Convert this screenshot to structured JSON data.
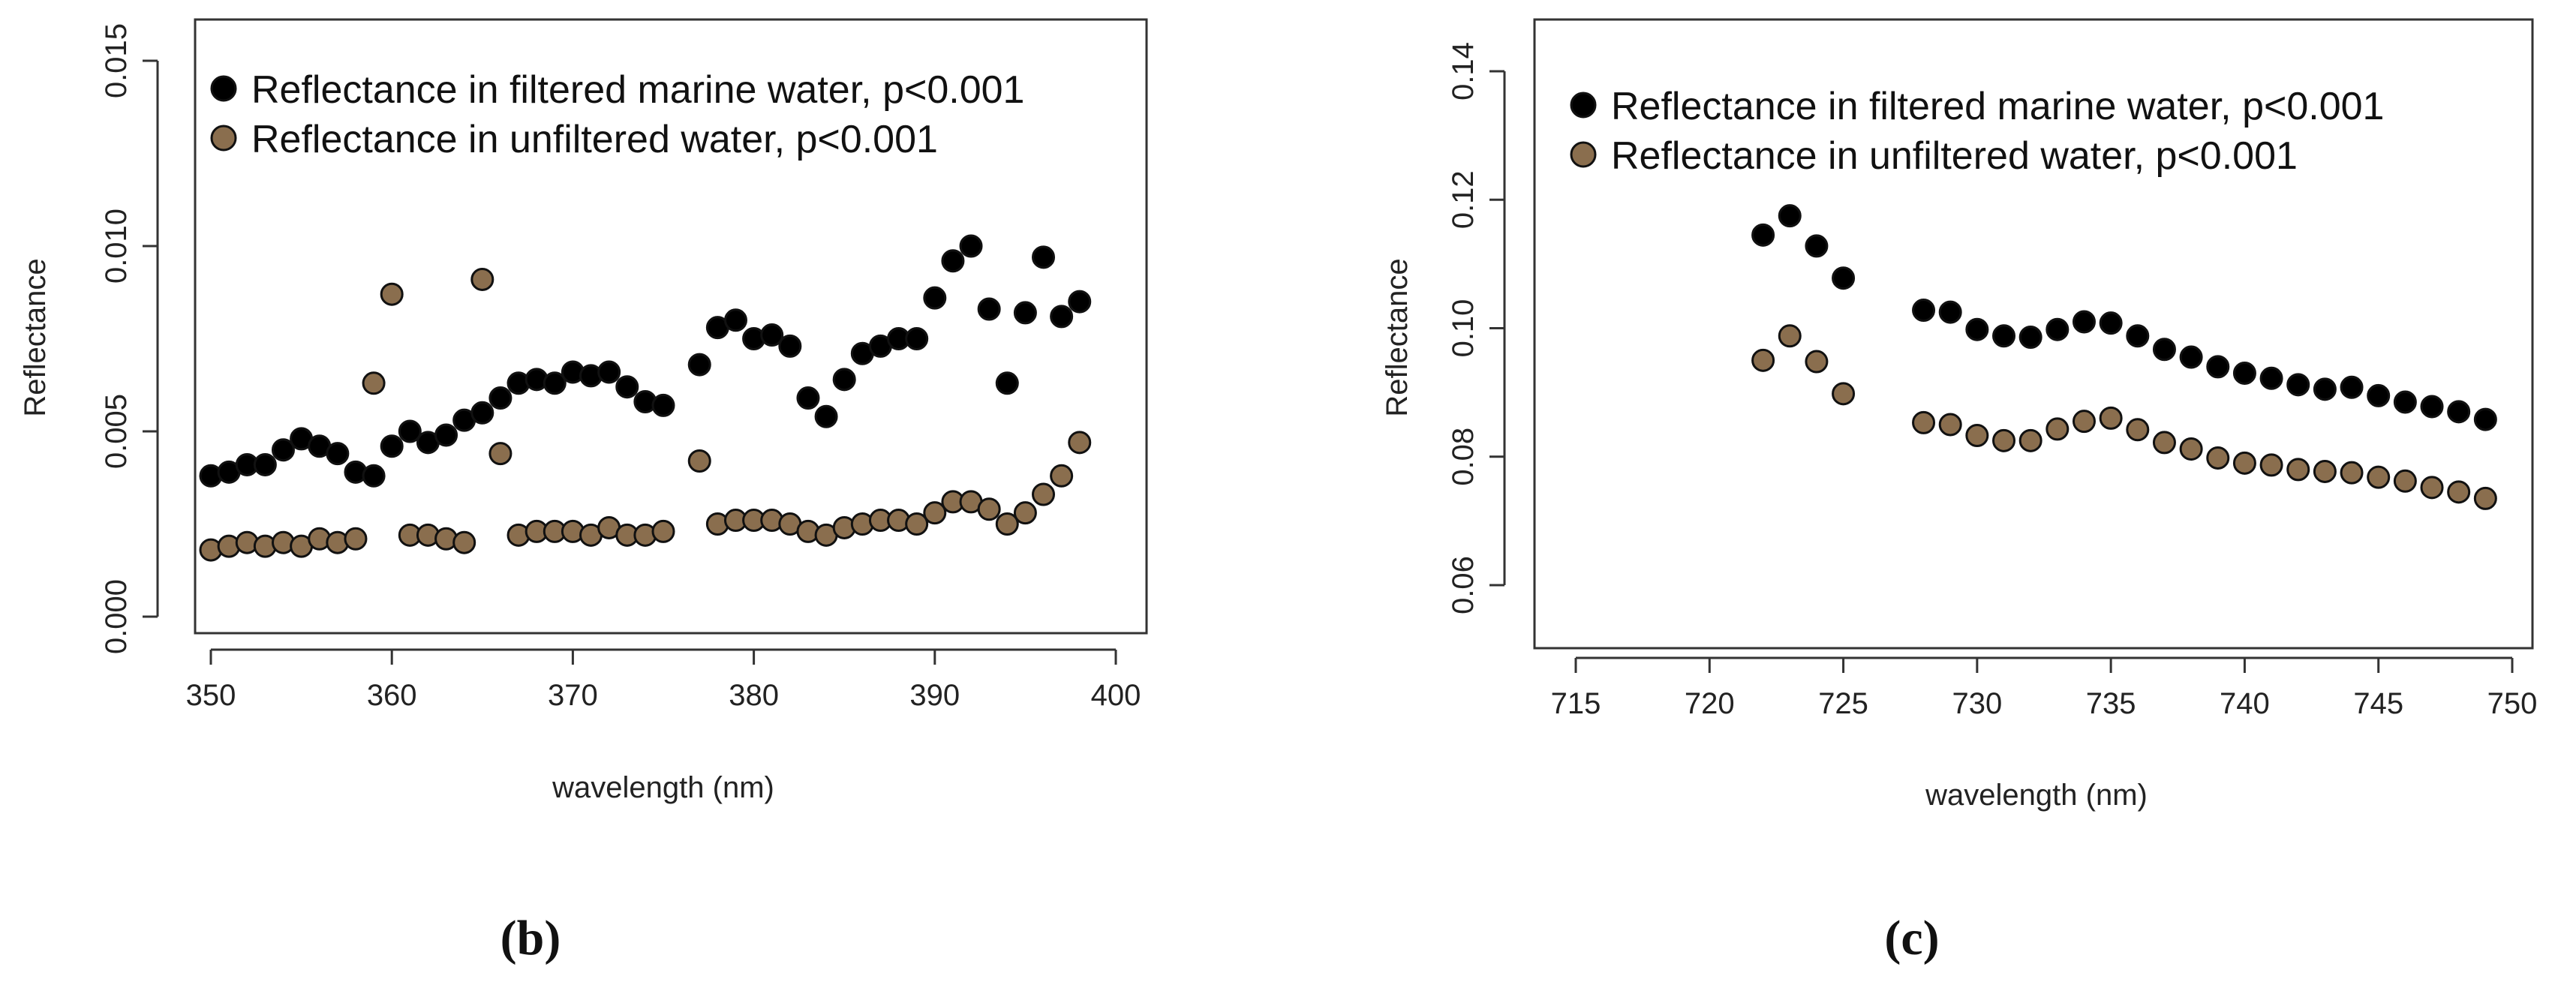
{
  "chart_data": [
    {
      "type": "scatter",
      "panel_label": "(b)",
      "title": "",
      "xlabel": "wavelength (nm)",
      "ylabel": "Reflectance",
      "xlim": [
        350,
        400
      ],
      "ylim": [
        0.0,
        0.015
      ],
      "xticks": [
        350,
        360,
        370,
        380,
        390,
        400
      ],
      "xtick_labels": [
        "350",
        "360",
        "370",
        "380",
        "390",
        "400"
      ],
      "yticks": [
        0.0,
        0.005,
        0.01,
        0.015
      ],
      "ytick_labels": [
        "0.000",
        "0.005",
        "0.010",
        "0.015"
      ],
      "legend_position": "top-left",
      "series": [
        {
          "name": "Reflectance in filtered marine water, p<0.001",
          "color": "#000000",
          "x": [
            350,
            351,
            352,
            353,
            354,
            355,
            356,
            357,
            358,
            359,
            360,
            361,
            362,
            363,
            364,
            365,
            366,
            367,
            368,
            369,
            370,
            371,
            372,
            373,
            374,
            375,
            377,
            378,
            379,
            380,
            381,
            382,
            383,
            384,
            385,
            386,
            387,
            388,
            389,
            390,
            391,
            392,
            393,
            394,
            395,
            396,
            397,
            398
          ],
          "y": [
            0.0038,
            0.0039,
            0.0041,
            0.0041,
            0.0045,
            0.0048,
            0.0046,
            0.0044,
            0.0039,
            0.0038,
            0.0046,
            0.005,
            0.0047,
            0.0049,
            0.0053,
            0.0055,
            0.0059,
            0.0063,
            0.0064,
            0.0063,
            0.0066,
            0.0065,
            0.0066,
            0.0062,
            0.0058,
            0.0057,
            0.0068,
            0.0078,
            0.008,
            0.0075,
            0.0076,
            0.0073,
            0.0059,
            0.0054,
            0.0064,
            0.0071,
            0.0073,
            0.0075,
            0.0075,
            0.0086,
            0.0096,
            0.01,
            0.0083,
            0.0063,
            0.0082,
            0.0097,
            0.0081,
            0.0085
          ]
        },
        {
          "name": "Reflectance in unfiltered water, p<0.001",
          "color": "#8a6e4e",
          "x": [
            350,
            351,
            352,
            353,
            354,
            355,
            356,
            357,
            358,
            359,
            360,
            361,
            362,
            363,
            364,
            365,
            366,
            367,
            368,
            369,
            370,
            371,
            372,
            373,
            374,
            375,
            377,
            378,
            379,
            380,
            381,
            382,
            383,
            384,
            385,
            386,
            387,
            388,
            389,
            390,
            391,
            392,
            393,
            394,
            395,
            396,
            397,
            398
          ],
          "y": [
            0.0018,
            0.0019,
            0.002,
            0.0019,
            0.002,
            0.0019,
            0.0021,
            0.002,
            0.0021,
            0.0063,
            0.0087,
            0.0022,
            0.0022,
            0.0021,
            0.002,
            0.0091,
            0.0044,
            0.0022,
            0.0023,
            0.0023,
            0.0023,
            0.0022,
            0.0024,
            0.0022,
            0.0022,
            0.0023,
            0.0042,
            0.0025,
            0.0026,
            0.0026,
            0.0026,
            0.0025,
            0.0023,
            0.0022,
            0.0024,
            0.0025,
            0.0026,
            0.0026,
            0.0025,
            0.0028,
            0.0031,
            0.0031,
            0.0029,
            0.0025,
            0.0028,
            0.0033,
            0.0038,
            0.0047
          ]
        }
      ]
    },
    {
      "type": "scatter",
      "panel_label": "(c)",
      "title": "",
      "xlabel": "wavelength (nm)",
      "ylabel": "Reflectance",
      "xlim": [
        715,
        750
      ],
      "ylim": [
        0.05,
        0.14
      ],
      "xticks": [
        715,
        720,
        725,
        730,
        735,
        740,
        745,
        750
      ],
      "xtick_labels": [
        "715",
        "720",
        "725",
        "730",
        "735",
        "740",
        "745",
        "750"
      ],
      "yticks": [
        0.06,
        0.08,
        0.1,
        0.12,
        0.14
      ],
      "ytick_labels": [
        "0.06",
        "0.08",
        "0.10",
        "0.12",
        "0.14"
      ],
      "legend_position": "top-left",
      "series": [
        {
          "name": "Reflectance in filtered marine water, p<0.001",
          "color": "#000000",
          "x": [
            722,
            723,
            724,
            725,
            728,
            729,
            730,
            731,
            732,
            733,
            734,
            735,
            736,
            737,
            738,
            739,
            740,
            741,
            742,
            743,
            744,
            745,
            746,
            747,
            748,
            749
          ],
          "y": [
            0.1145,
            0.1175,
            0.1128,
            0.1078,
            0.1028,
            0.1025,
            0.0998,
            0.0988,
            0.0986,
            0.0998,
            0.101,
            0.1008,
            0.0988,
            0.0967,
            0.0955,
            0.094,
            0.093,
            0.0922,
            0.0912,
            0.0905,
            0.0908,
            0.0895,
            0.0885,
            0.0878,
            0.087,
            0.0858
          ]
        },
        {
          "name": "Reflectance in unfiltered water, p<0.001",
          "color": "#8a6e4e",
          "x": [
            722,
            723,
            724,
            725,
            728,
            729,
            730,
            731,
            732,
            733,
            734,
            735,
            736,
            737,
            738,
            739,
            740,
            741,
            742,
            743,
            744,
            745,
            746,
            747,
            748,
            749
          ],
          "y": [
            0.095,
            0.0988,
            0.0948,
            0.0898,
            0.0853,
            0.085,
            0.0833,
            0.0825,
            0.0825,
            0.0843,
            0.0855,
            0.086,
            0.0842,
            0.0822,
            0.0812,
            0.0798,
            0.079,
            0.0787,
            0.078,
            0.0777,
            0.0775,
            0.0768,
            0.0762,
            0.0752,
            0.0745,
            0.0735
          ]
        }
      ]
    }
  ]
}
